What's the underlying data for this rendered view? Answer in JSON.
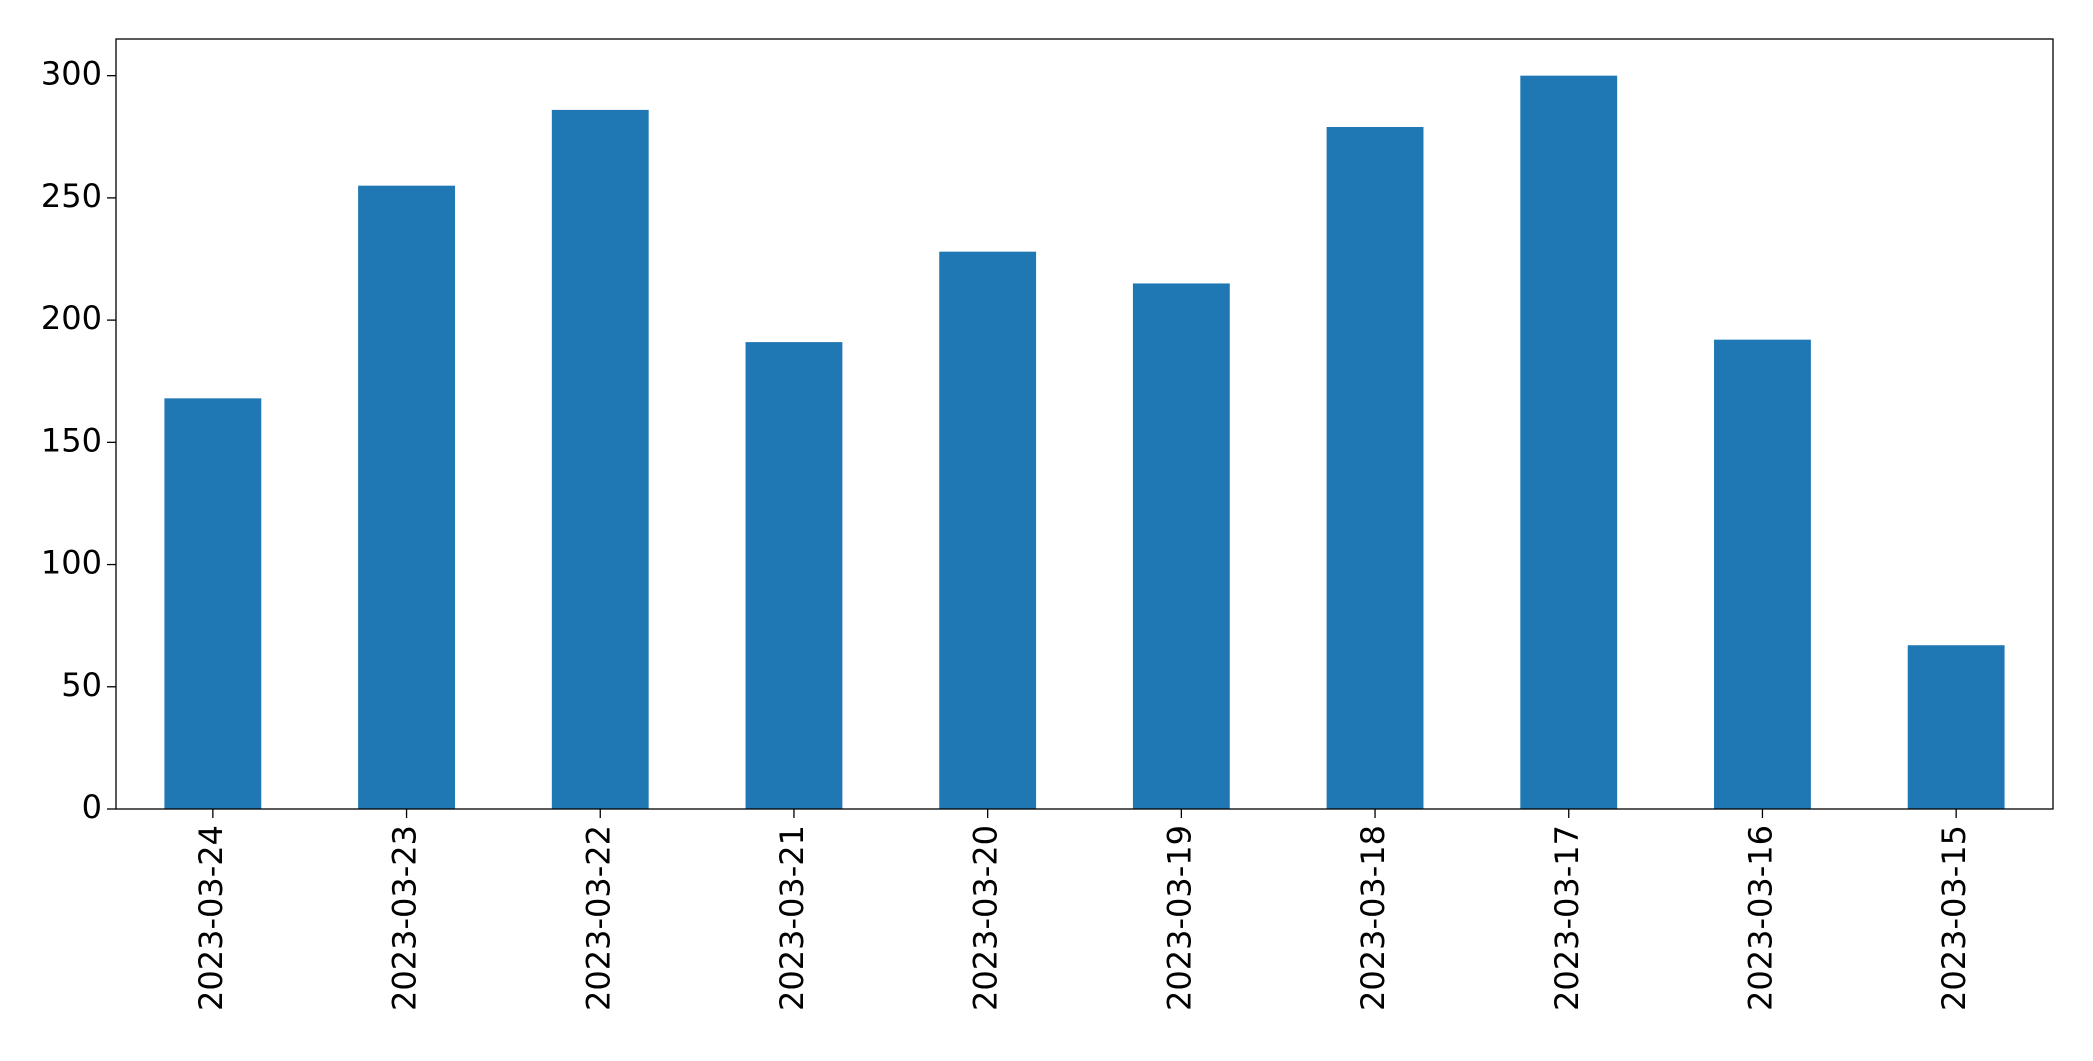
{
  "chart_data": {
    "type": "bar",
    "categories": [
      "2023-03-24",
      "2023-03-23",
      "2023-03-22",
      "2023-03-21",
      "2023-03-20",
      "2023-03-19",
      "2023-03-18",
      "2023-03-17",
      "2023-03-16",
      "2023-03-15"
    ],
    "values": [
      168,
      255,
      286,
      191,
      228,
      215,
      279,
      300,
      192,
      67
    ],
    "color": "#1f77b4",
    "ylim": [
      0,
      315
    ],
    "yticks": [
      0,
      50,
      100,
      150,
      200,
      250,
      300
    ],
    "grid": false
  }
}
